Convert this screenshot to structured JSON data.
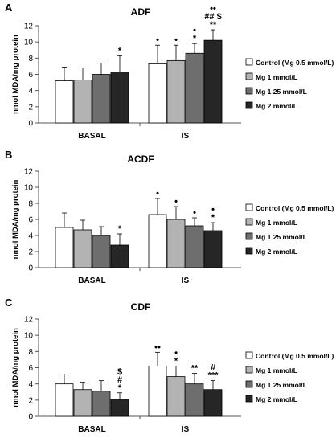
{
  "legend": [
    {
      "name": "Control (Mg 0.5 mmol/L)",
      "color": "#ffffff"
    },
    {
      "name": "Mg 1 mmol/L",
      "color": "#b3b3b3"
    },
    {
      "name": "Mg 1.25 mmol/L",
      "color": "#6e6e6e"
    },
    {
      "name": "Mg 2 mmol/L",
      "color": "#262626"
    }
  ],
  "chart_data": [
    {
      "type": "bar",
      "panel": "A",
      "title": "ADF",
      "ylabel": "nmol MDA/mg protein",
      "ylim": [
        0,
        12
      ],
      "yticks": [
        0,
        2,
        4,
        6,
        8,
        10,
        12
      ],
      "categories": [
        "BASAL",
        "IS"
      ],
      "series": [
        {
          "name": "Control (Mg 0.5 mmol/L)",
          "values": [
            5.2,
            7.3
          ],
          "errors": [
            1.7,
            2.3
          ]
        },
        {
          "name": "Mg 1 mmol/L",
          "values": [
            5.3,
            7.7
          ],
          "errors": [
            1.5,
            1.9
          ]
        },
        {
          "name": "Mg 1.25 mmol/L",
          "values": [
            6.0,
            8.6
          ],
          "errors": [
            1.4,
            1.2
          ]
        },
        {
          "name": "Mg 2 mmol/L",
          "values": [
            6.3,
            10.2
          ],
          "errors": [
            2.0,
            1.3
          ]
        }
      ],
      "annotations": [
        {
          "category": 0,
          "series": 3,
          "lines": [
            "*"
          ]
        },
        {
          "category": 1,
          "series": 0,
          "lines": [
            "•"
          ]
        },
        {
          "category": 1,
          "series": 1,
          "lines": [
            "•"
          ]
        },
        {
          "category": 1,
          "series": 2,
          "lines": [
            "•",
            "*"
          ]
        },
        {
          "category": 1,
          "series": 3,
          "lines": [
            "••",
            "## $",
            "**"
          ]
        }
      ]
    },
    {
      "type": "bar",
      "panel": "B",
      "title": "ACDF",
      "ylabel": "nmol MDA/mg protein",
      "ylim": [
        0,
        12
      ],
      "yticks": [
        0,
        2,
        4,
        6,
        8,
        10,
        12
      ],
      "categories": [
        "BASAL",
        "IS"
      ],
      "series": [
        {
          "name": "Control (Mg 0.5 mmol/L)",
          "values": [
            5.0,
            6.6
          ],
          "errors": [
            1.8,
            2.0
          ]
        },
        {
          "name": "Mg 1 mmol/L",
          "values": [
            4.7,
            6.0
          ],
          "errors": [
            1.2,
            1.6
          ]
        },
        {
          "name": "Mg 1.25 mmol/L",
          "values": [
            4.0,
            5.2
          ],
          "errors": [
            1.1,
            1.0
          ]
        },
        {
          "name": "Mg 2 mmol/L",
          "values": [
            2.8,
            4.6
          ],
          "errors": [
            1.4,
            1.0
          ]
        }
      ],
      "annotations": [
        {
          "category": 0,
          "series": 3,
          "lines": [
            "*"
          ]
        },
        {
          "category": 1,
          "series": 0,
          "lines": [
            "•"
          ]
        },
        {
          "category": 1,
          "series": 1,
          "lines": [
            "•"
          ]
        },
        {
          "category": 1,
          "series": 2,
          "lines": [
            "•"
          ]
        },
        {
          "category": 1,
          "series": 3,
          "lines": [
            "•",
            "*"
          ]
        }
      ]
    },
    {
      "type": "bar",
      "panel": "C",
      "title": "CDF",
      "ylabel": "nmol MDA/mg protein",
      "ylim": [
        0,
        12
      ],
      "yticks": [
        0,
        2,
        4,
        6,
        8,
        10,
        12
      ],
      "categories": [
        "BASAL",
        "IS"
      ],
      "series": [
        {
          "name": "Control (Mg 0.5 mmol/L)",
          "values": [
            4.0,
            6.2
          ],
          "errors": [
            1.2,
            1.7
          ]
        },
        {
          "name": "Mg 1 mmol/L",
          "values": [
            3.3,
            4.9
          ],
          "errors": [
            0.9,
            1.3
          ]
        },
        {
          "name": "Mg 1.25 mmol/L",
          "values": [
            3.1,
            4.0
          ],
          "errors": [
            1.3,
            1.3
          ]
        },
        {
          "name": "Mg 2 mmol/L",
          "values": [
            2.1,
            3.3
          ],
          "errors": [
            0.8,
            1.1
          ]
        }
      ],
      "annotations": [
        {
          "category": 0,
          "series": 3,
          "lines": [
            "$",
            "#",
            "*"
          ]
        },
        {
          "category": 1,
          "series": 0,
          "lines": [
            "••"
          ]
        },
        {
          "category": 1,
          "series": 1,
          "lines": [
            "•",
            "*"
          ]
        },
        {
          "category": 1,
          "series": 2,
          "lines": [
            "**"
          ]
        },
        {
          "category": 1,
          "series": 3,
          "lines": [
            "#",
            "***"
          ]
        }
      ]
    }
  ]
}
